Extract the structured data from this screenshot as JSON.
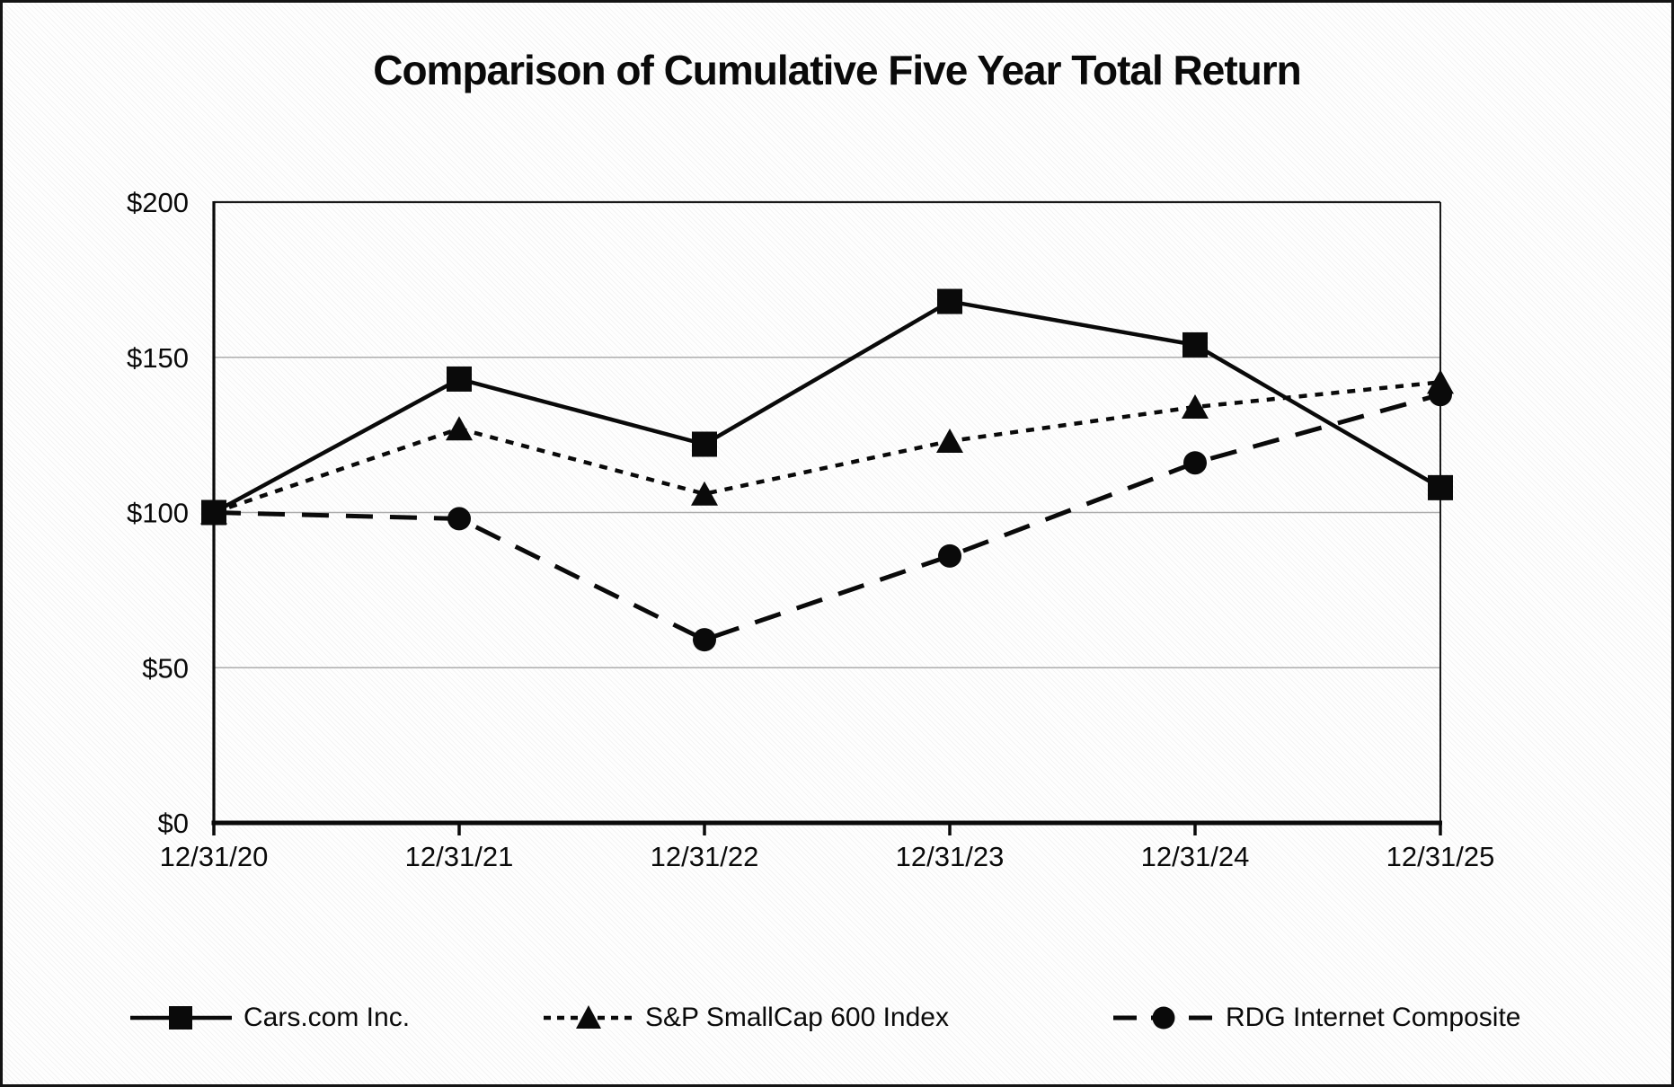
{
  "chart_data": {
    "type": "line",
    "title": "Comparison of Cumulative Five Year Total Return",
    "categories": [
      "12/31/20",
      "12/31/21",
      "12/31/22",
      "12/31/23",
      "12/31/24",
      "12/31/25"
    ],
    "series": [
      {
        "name": "Cars.com Inc.",
        "line": "solid",
        "marker": "square",
        "values": [
          100,
          143,
          122,
          168,
          154,
          108
        ]
      },
      {
        "name": "S&P SmallCap 600 Index",
        "line": "dotted",
        "marker": "triangle",
        "values": [
          100,
          127,
          106,
          123,
          134,
          142
        ]
      },
      {
        "name": "RDG Internet Composite",
        "line": "dashed",
        "marker": "circle",
        "values": [
          100,
          98,
          59,
          86,
          116,
          138
        ]
      }
    ],
    "xlabel": "",
    "ylabel": "",
    "ylim": [
      0,
      200
    ],
    "y_ticks": [
      {
        "value": 200,
        "label": "$200"
      },
      {
        "value": 150,
        "label": "$150"
      },
      {
        "value": 100,
        "label": "$100"
      },
      {
        "value": 50,
        "label": "$50"
      },
      {
        "value": 0,
        "label": "$0"
      }
    ],
    "grid": "horizontal gridlines every $50",
    "legend_position": "bottom",
    "colors": {
      "series": "#0a0a0a",
      "gridline": "#adadad",
      "axis": "#0a0a0a",
      "background": "#fefefe"
    }
  },
  "legend": {
    "items": [
      {
        "label": "Cars.com Inc."
      },
      {
        "label": "S&P SmallCap 600 Index"
      },
      {
        "label": "RDG Internet Composite"
      }
    ]
  }
}
